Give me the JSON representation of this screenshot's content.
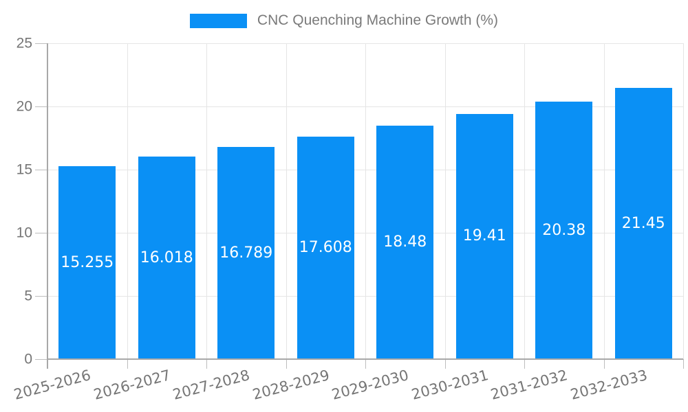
{
  "legend": {
    "label": "CNC Quenching Machine Growth (%)"
  },
  "chart_data": {
    "type": "bar",
    "title": "CNC Quenching Machine Growth (%)",
    "legend_entries": [
      "CNC Quenching Machine Growth (%)"
    ],
    "legend_position": "top",
    "categories": [
      "2025-2026",
      "2026-2027",
      "2027-2028",
      "2028-2029",
      "2029-2030",
      "2030-2031",
      "2031-2032",
      "2032-2033"
    ],
    "values": [
      15.255,
      16.018,
      16.789,
      17.608,
      18.48,
      19.41,
      20.38,
      21.45
    ],
    "value_labels": [
      "15.255",
      "16.018",
      "16.789",
      "17.608",
      "18.48",
      "19.41",
      "20.38",
      "21.45"
    ],
    "xlabel": "",
    "ylabel": "",
    "ylim": [
      0,
      25
    ],
    "yticks": [
      0,
      5,
      10,
      15,
      20,
      25
    ],
    "grid": true,
    "x_tick_rotation_deg": -15,
    "bar_color": "#0a90f5",
    "value_label_color": "#ffffff",
    "axis_text_color": "#757575",
    "grid_color": "#e5e5e5",
    "axis_line_color": "#a8a8a8",
    "legend_text_color": "#7a7a7a",
    "background_color": "#ffffff"
  }
}
